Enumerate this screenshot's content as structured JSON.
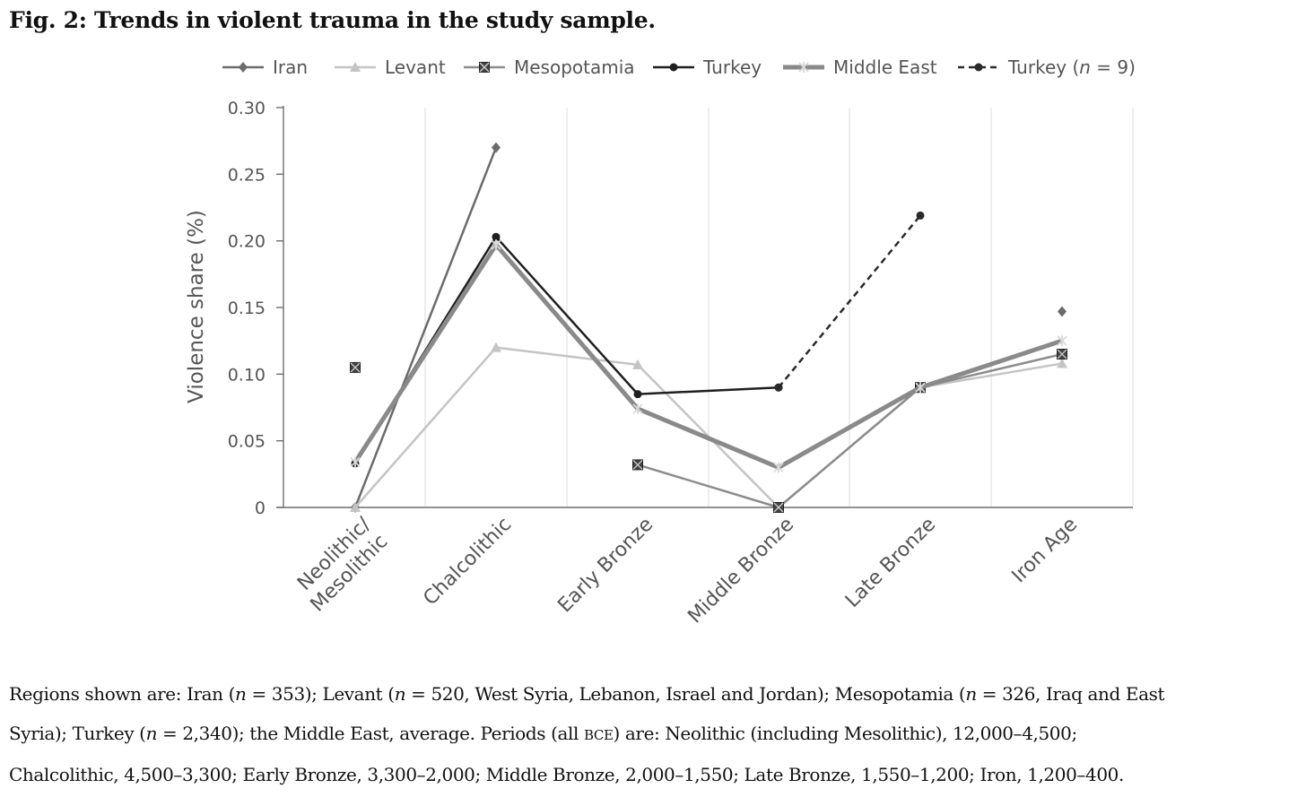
{
  "figure": {
    "title": "Fig. 2: Trends in violent trauma in the study sample."
  },
  "chart_data": {
    "type": "line",
    "title": "",
    "xlabel": "",
    "ylabel": "Violence share (%)",
    "ylim": [
      0,
      0.3
    ],
    "yticks": [
      0,
      0.05,
      0.1,
      0.15,
      0.2,
      0.25,
      0.3
    ],
    "ytick_labels": [
      "0",
      "0.05",
      "0.10",
      "0.15",
      "0.20",
      "0.25",
      "0.30"
    ],
    "categories": [
      "Neolithic/\nMesolithic",
      "Chalcolithic",
      "Early Bronze",
      "Middle Bronze",
      "Late Bronze",
      "Iron Age"
    ],
    "category_lines": [
      [
        "Neolithic/",
        "Mesolithic"
      ],
      [
        "Chalcolithic"
      ],
      [
        "Early Bronze"
      ],
      [
        "Middle Bronze"
      ],
      [
        "Late Bronze"
      ],
      [
        "Iron Age"
      ]
    ],
    "grid": "vertical",
    "legend_position": "top",
    "series": [
      {
        "name": "Iran",
        "legend_suffix": "",
        "values": [
          0,
          0.27,
          null,
          null,
          null,
          0.147
        ],
        "color": "#6b6b6b",
        "marker": "diamond",
        "dashed": false,
        "width": 2.5
      },
      {
        "name": "Levant",
        "legend_suffix": "",
        "values": [
          0,
          0.12,
          0.107,
          0,
          0.09,
          0.108
        ],
        "color": "#c4c4c4",
        "marker": "triangle",
        "dashed": false,
        "width": 2.5
      },
      {
        "name": "Mesopotamia",
        "legend_suffix": "",
        "values": [
          0.105,
          null,
          0.032,
          0,
          0.09,
          0.115
        ],
        "color": "#8c8c8c",
        "marker": "xsquare",
        "dashed": false,
        "width": 2.5
      },
      {
        "name": "Turkey",
        "legend_suffix": "",
        "values": [
          0.033,
          0.203,
          0.085,
          0.09,
          null,
          null
        ],
        "color": "#1f1f1f",
        "marker": "dot",
        "dashed": false,
        "width": 2.5
      },
      {
        "name": "Middle East",
        "legend_suffix": "",
        "values": [
          0.034,
          0.197,
          0.074,
          0.03,
          0.09,
          0.125
        ],
        "color": "#8a8a8a",
        "marker": "asterisk",
        "dashed": false,
        "width": 5
      },
      {
        "name": "Turkey (",
        "legend_n": "n",
        "legend_suffix": " = 9)",
        "values": [
          null,
          null,
          null,
          0.09,
          0.219,
          null
        ],
        "color": "#2a2a2a",
        "marker": "dot",
        "dashed": true,
        "width": 2.5
      }
    ]
  },
  "caption": {
    "line1": [
      {
        "t": "Regions shown are: Iran ("
      },
      {
        "t": "n",
        "i": true
      },
      {
        "t": " = 353); Levant ("
      },
      {
        "t": "n",
        "i": true
      },
      {
        "t": " = 520, West Syria, Lebanon, Israel and Jordan); Mesopotamia ("
      },
      {
        "t": "n",
        "i": true
      },
      {
        "t": " = 326, Iraq and East"
      }
    ],
    "line2": [
      {
        "t": "Syria); Turkey ("
      },
      {
        "t": "n",
        "i": true
      },
      {
        "t": " = 2,340); the Middle East, average. Periods (all "
      },
      {
        "t": "BCE",
        "sc": true
      },
      {
        "t": ") are: Neolithic (including Mesolithic), 12,000–4,500;"
      }
    ],
    "line3": [
      {
        "t": "Chalcolithic, 4,500–3,300; Early Bronze, 3,300–2,000; Middle Bronze, 2,000–1,550; Late Bronze, 1,550–1,200; Iron, 1,200–400."
      }
    ]
  }
}
